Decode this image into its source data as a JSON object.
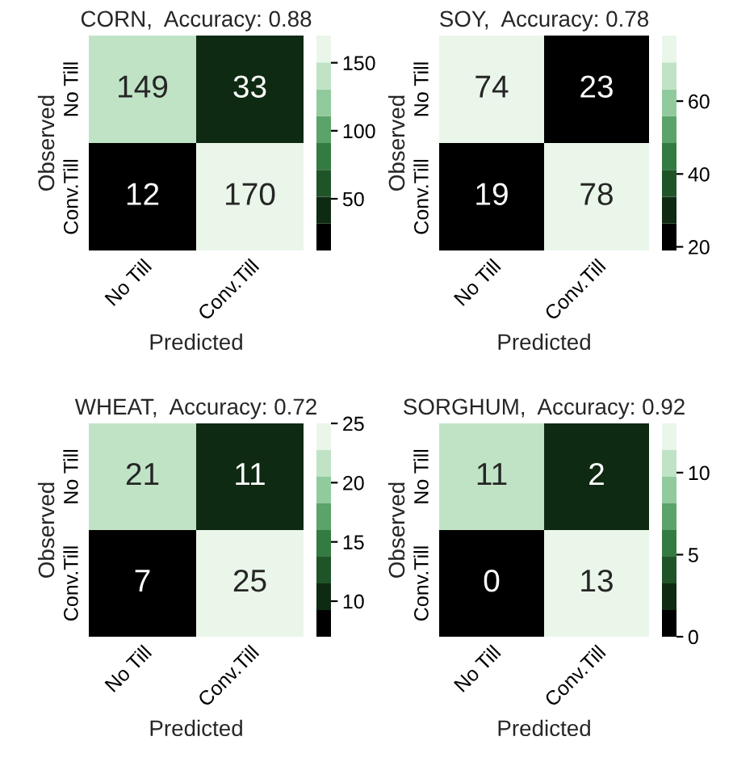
{
  "chart_data": [
    {
      "type": "heatmap",
      "title": "CORN,  Accuracy: 0.88",
      "xlabel": "Predicted",
      "ylabel": "Observed",
      "categories": [
        "No Till",
        "Conv.Till"
      ],
      "y_categories": [
        "No Till",
        "Conv.Till"
      ],
      "cells": [
        [
          149,
          33
        ],
        [
          12,
          170
        ]
      ],
      "data_labels": true,
      "clim": [
        12,
        170
      ],
      "cticks": [
        50,
        100,
        150
      ]
    },
    {
      "type": "heatmap",
      "title": "SOY,  Accuracy: 0.78",
      "xlabel": "Predicted",
      "ylabel": "Observed",
      "categories": [
        "No Till",
        "Conv.Till"
      ],
      "y_categories": [
        "No Till",
        "Conv.Till"
      ],
      "cells": [
        [
          74,
          23
        ],
        [
          19,
          78
        ]
      ],
      "data_labels": true,
      "clim": [
        19,
        78
      ],
      "cticks": [
        20,
        40,
        60
      ]
    },
    {
      "type": "heatmap",
      "title": "WHEAT,  Accuracy: 0.72",
      "xlabel": "Predicted",
      "ylabel": "Observed",
      "categories": [
        "No Till",
        "Conv.Till"
      ],
      "y_categories": [
        "No Till",
        "Conv.Till"
      ],
      "cells": [
        [
          21,
          11
        ],
        [
          7,
          25
        ]
      ],
      "data_labels": true,
      "clim": [
        7,
        25
      ],
      "cticks": [
        10,
        15,
        20,
        25
      ]
    },
    {
      "type": "heatmap",
      "title": "SORGHUM,  Accuracy: 0.92",
      "xlabel": "Predicted",
      "ylabel": "Observed",
      "categories": [
        "No Till",
        "Conv.Till"
      ],
      "y_categories": [
        "No Till",
        "Conv.Till"
      ],
      "cells": [
        [
          11,
          2
        ],
        [
          0,
          13
        ]
      ],
      "data_labels": true,
      "clim": [
        0,
        13
      ],
      "cticks": [
        0,
        5,
        10
      ]
    }
  ]
}
